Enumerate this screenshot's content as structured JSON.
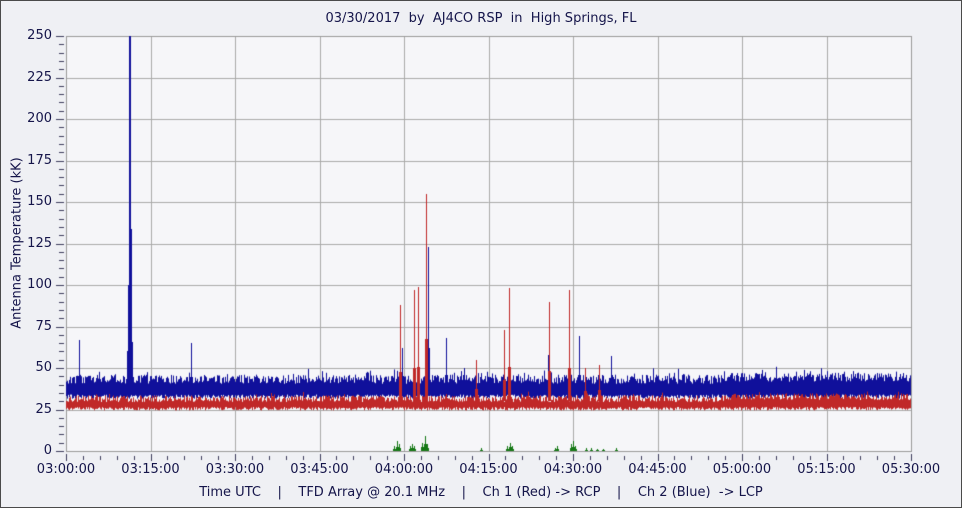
{
  "window": {
    "background": "#eff0f4",
    "border_color": "#4a4a4a"
  },
  "chart_data": {
    "type": "line",
    "title": "03/30/2017  by  AJ4CO RSP  in  High Springs, FL",
    "ylabel": "Antenna Temperature (kK)",
    "caption": "Time UTC    |    TFD Array @ 20.1 MHz    |    Ch 1 (Red) -> RCP    |    Ch 2 (Blue)  -> LCP",
    "x_range": [
      "03:00:00",
      "05:30:00"
    ],
    "ylim": [
      0,
      250
    ],
    "grid": true,
    "legend": "none",
    "x_ticks": [
      "03:00:00",
      "03:15:00",
      "03:30:00",
      "03:45:00",
      "04:00:00",
      "04:15:00",
      "04:30:00",
      "04:45:00",
      "05:00:00",
      "05:15:00",
      "05:30:00"
    ],
    "x_minor_step_sec": 180,
    "y_ticks": [
      "0",
      "25",
      "50",
      "75",
      "100",
      "125",
      "150",
      "175",
      "200",
      "225",
      "250"
    ],
    "y_major_step": 25,
    "y_minor_step": 5,
    "colors": {
      "plot_bg": "#f6f6f9",
      "grid": "#aaaaaa",
      "frame": "#9a9a9a",
      "tick": "#3c3c5c",
      "text": "#15154a"
    },
    "noise_seed": 20170330,
    "series": [
      {
        "name": "Ch 1 (Red) -> RCP",
        "color": "#c02828",
        "spike_base": 30,
        "band": {
          "low_min": 24.5,
          "low_max": 26.5,
          "high_min": 29.5,
          "high_max": 33.5,
          "burst_chance": 0.07,
          "burst_extra": 2.5
        },
        "spikes": [
          {
            "t": "03:59:17",
            "v": 88
          },
          {
            "t": "04:01:47",
            "v": 97
          },
          {
            "t": "04:02:29",
            "v": 99
          },
          {
            "t": "04:03:55",
            "v": 155
          },
          {
            "t": "04:12:47",
            "v": 55
          },
          {
            "t": "04:17:45",
            "v": 73
          },
          {
            "t": "04:18:38",
            "v": 98
          },
          {
            "t": "04:25:44",
            "v": 90
          },
          {
            "t": "04:29:17",
            "v": 97
          },
          {
            "t": "04:32:08",
            "v": 50
          },
          {
            "t": "04:34:37",
            "v": 52
          }
        ]
      },
      {
        "name": "Ch 2 (Blue) -> LCP",
        "color": "#10109b",
        "spike_base": 36,
        "band": {
          "low_min": 31.5,
          "low_max": 34.0,
          "high_min": 40.5,
          "high_max": 46.0,
          "burst_chance": 0.1,
          "burst_extra": 4.0
        },
        "spikes": [
          {
            "t": "03:02:18",
            "v": 67
          },
          {
            "t": "03:10:47",
            "v": 60
          },
          {
            "t": "03:11:11",
            "v": 255,
            "w": 2
          },
          {
            "t": "03:11:32",
            "v": 134
          },
          {
            "t": "03:22:11",
            "v": 65
          },
          {
            "t": "03:59:39",
            "v": 62
          },
          {
            "t": "04:04:16",
            "v": 123
          },
          {
            "t": "04:07:27",
            "v": 68
          },
          {
            "t": "04:10:39",
            "v": 50
          },
          {
            "t": "04:25:34",
            "v": 58
          },
          {
            "t": "04:31:04",
            "v": 69
          },
          {
            "t": "04:36:45",
            "v": 57
          }
        ]
      },
      {
        "name": "Green",
        "color": "#157815",
        "spike_base": 0,
        "band": null,
        "spikes": [
          {
            "t": "03:58:14",
            "v": 3
          },
          {
            "t": "03:58:46",
            "v": 6
          },
          {
            "t": "03:59:07",
            "v": 4
          },
          {
            "t": "04:01:04",
            "v": 3
          },
          {
            "t": "04:01:25",
            "v": 4
          },
          {
            "t": "04:01:47",
            "v": 3
          },
          {
            "t": "04:03:12",
            "v": 5
          },
          {
            "t": "04:03:44",
            "v": 9
          },
          {
            "t": "04:04:05",
            "v": 4
          },
          {
            "t": "04:13:40",
            "v": 2
          },
          {
            "t": "04:18:17",
            "v": 3
          },
          {
            "t": "04:18:49",
            "v": 5
          },
          {
            "t": "04:19:11",
            "v": 3
          },
          {
            "t": "04:26:49",
            "v": 2
          },
          {
            "t": "04:27:10",
            "v": 3
          },
          {
            "t": "04:29:39",
            "v": 4
          },
          {
            "t": "04:30:00",
            "v": 6
          },
          {
            "t": "04:30:22",
            "v": 3
          },
          {
            "t": "04:32:19",
            "v": 2
          },
          {
            "t": "04:33:12",
            "v": 2
          },
          {
            "t": "04:34:16",
            "v": 1.5
          },
          {
            "t": "04:35:20",
            "v": 1.5
          },
          {
            "t": "04:37:38",
            "v": 2
          }
        ]
      }
    ]
  }
}
